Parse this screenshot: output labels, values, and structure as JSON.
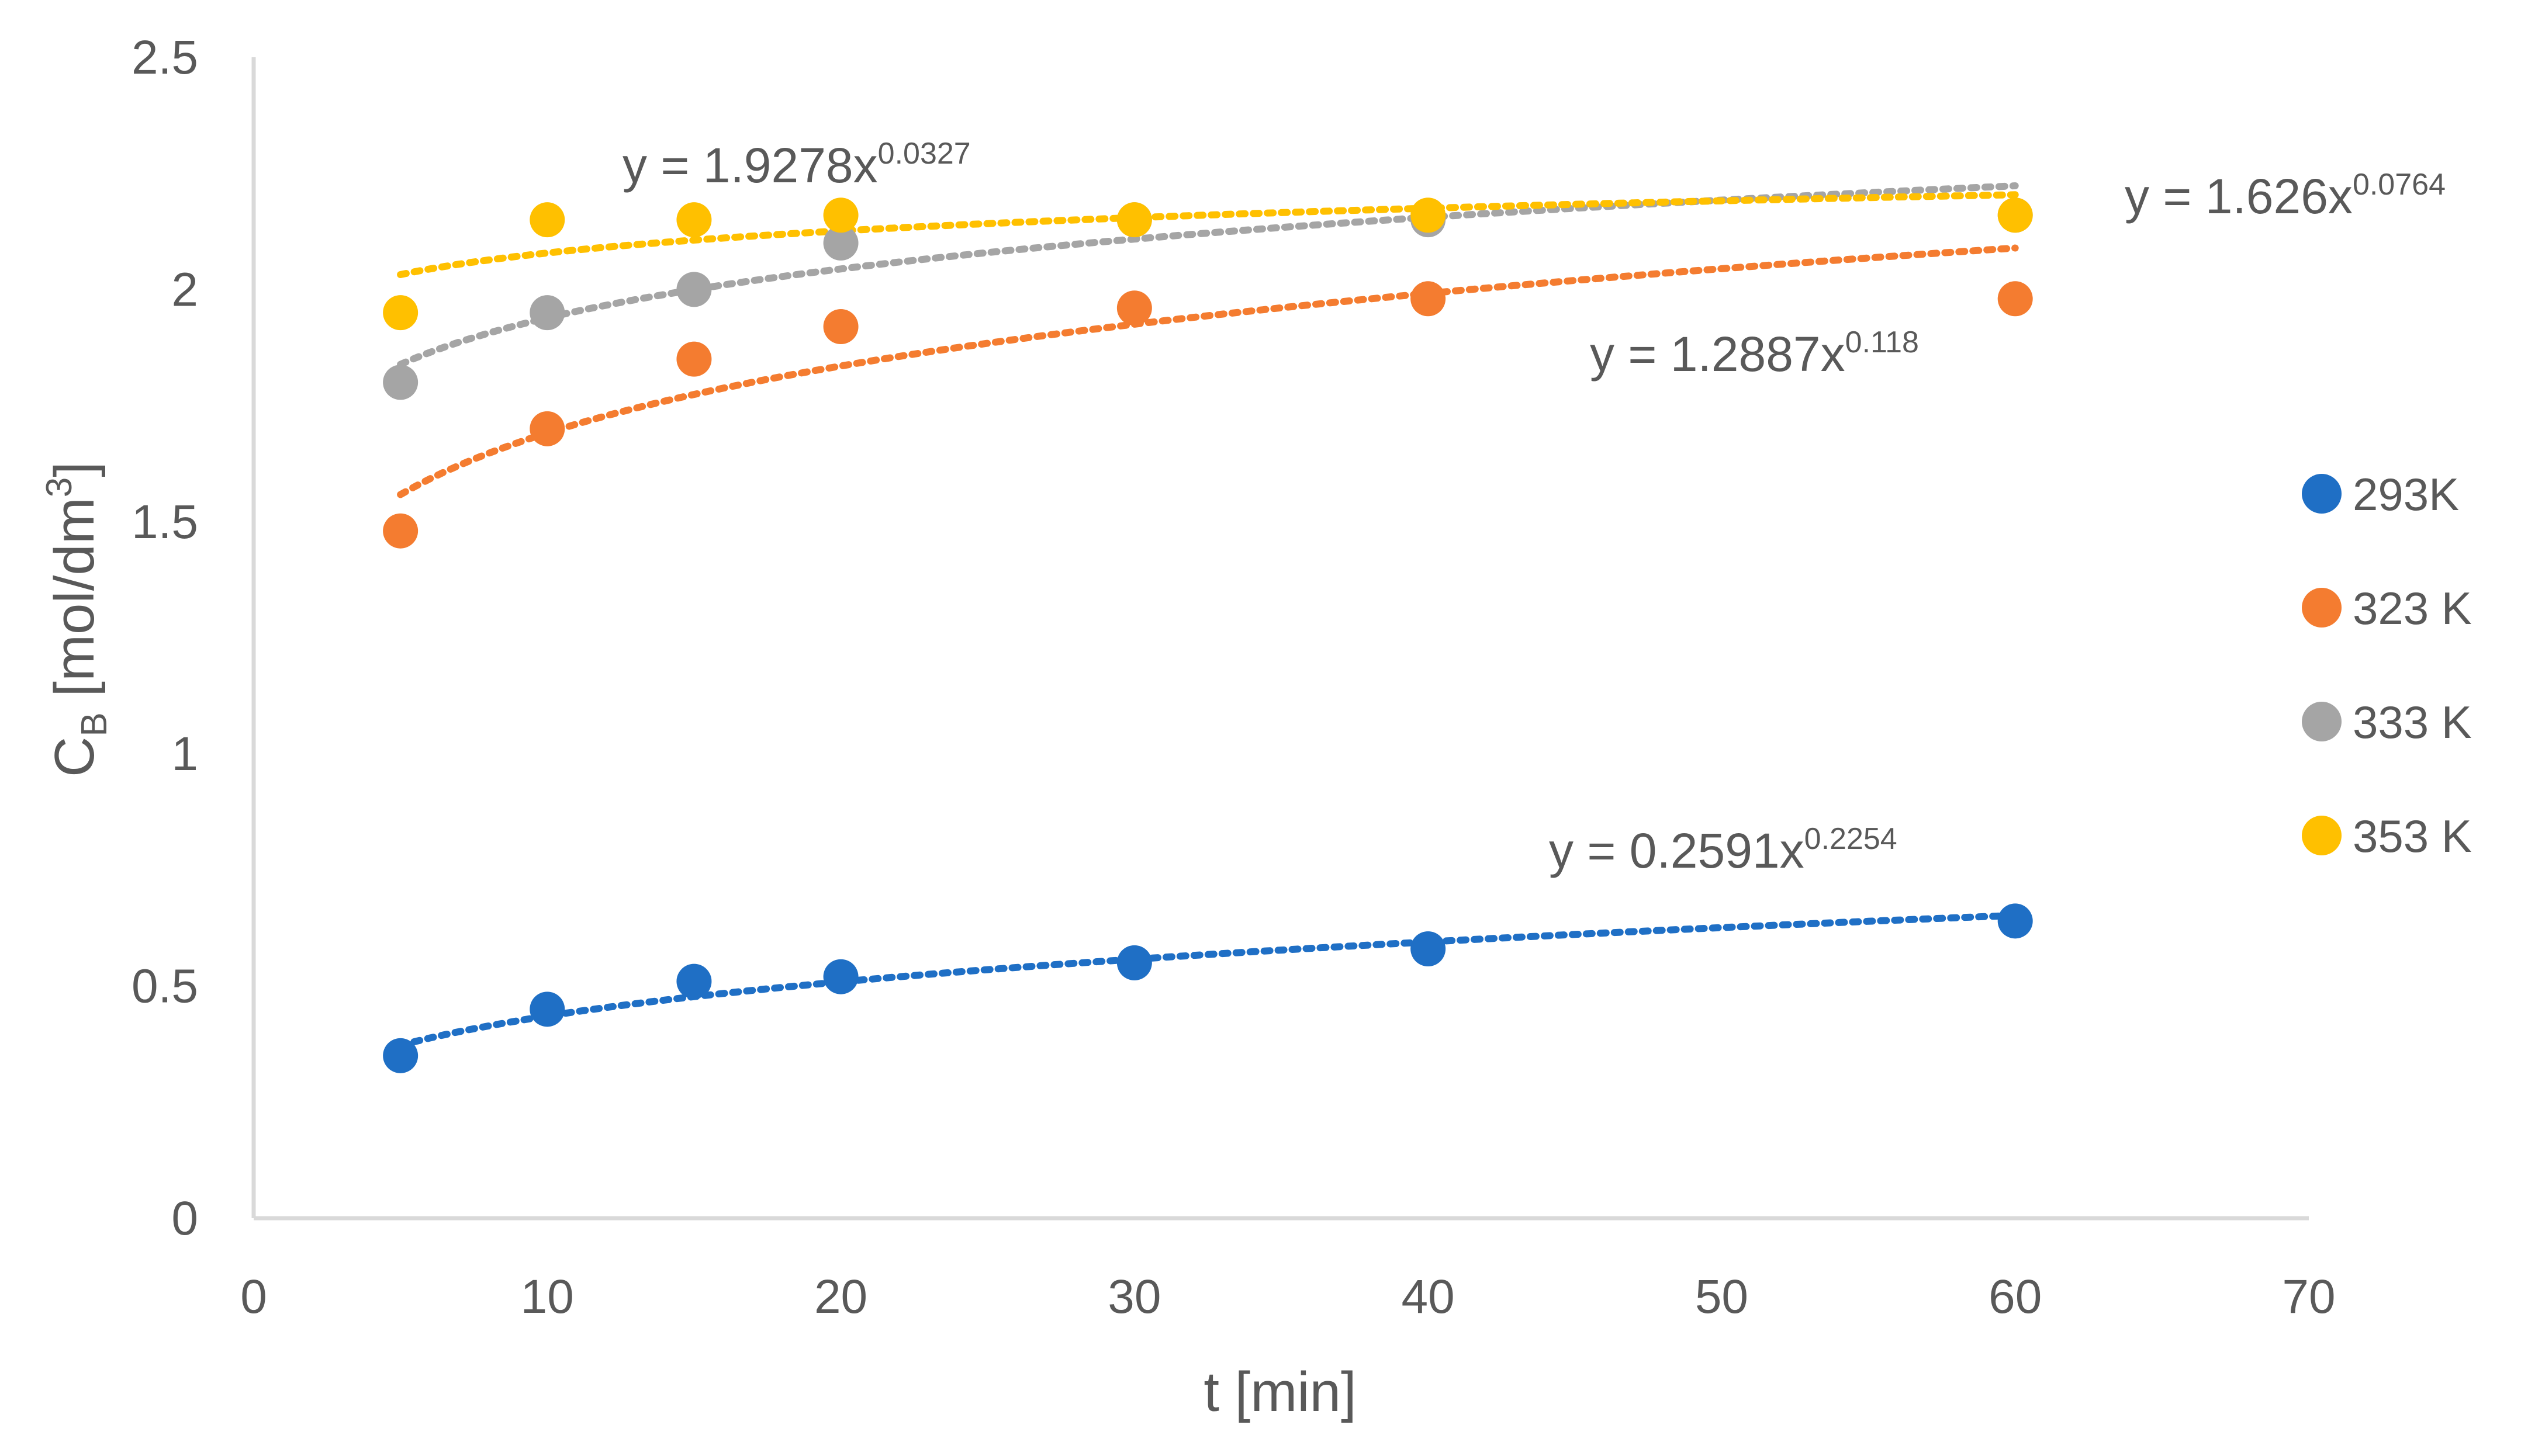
{
  "chart_data": {
    "type": "scatter",
    "title": "",
    "xlabel": "t [min]",
    "ylabel": {
      "main": "C",
      "sub": "B",
      "unit_prefix": " [mol/dm",
      "unit_sup": "3",
      "unit_suffix": "]"
    },
    "xlim": [
      0,
      70
    ],
    "ylim": [
      0,
      2.5
    ],
    "xticks": [
      "0",
      "10",
      "20",
      "30",
      "40",
      "50",
      "60",
      "70"
    ],
    "yticks": [
      "0",
      "0.5",
      "1",
      "1.5",
      "2",
      "2.5"
    ],
    "grid": false,
    "legend_position": "right",
    "x": [
      5,
      10,
      15,
      20,
      30,
      40,
      60
    ],
    "series": [
      {
        "name": "293K",
        "color": "#1f6fc5",
        "values": [
          0.35,
          0.45,
          0.51,
          0.52,
          0.55,
          0.58,
          0.64
        ],
        "trendline": {
          "a": 0.2591,
          "b": 0.2254,
          "label": "y = 0.2591x",
          "exponent": "0.2254"
        }
      },
      {
        "name": "323 K",
        "color": "#f47c30",
        "values": [
          1.48,
          1.7,
          1.85,
          1.92,
          1.96,
          1.98,
          1.98
        ],
        "trendline": {
          "a": 1.2887,
          "b": 0.118,
          "label": "y = 1.2887x",
          "exponent": "0.118"
        }
      },
      {
        "name": "333 K",
        "color": "#a5a5a5",
        "values": [
          1.8,
          1.95,
          2.0,
          2.1,
          2.15,
          2.15,
          2.16
        ],
        "trendline": {
          "a": 1.626,
          "b": 0.0764,
          "label": "y = 1.626x",
          "exponent": "0.0764"
        }
      },
      {
        "name": "353 K",
        "color": "#ffc000",
        "values": [
          1.95,
          2.15,
          2.15,
          2.16,
          2.15,
          2.16,
          2.16
        ],
        "trendline": {
          "a": 1.9278,
          "b": 0.0327,
          "label": "y = 1.9278x",
          "exponent": "0.0327"
        }
      }
    ],
    "axis_color": "#d9d9d9"
  }
}
